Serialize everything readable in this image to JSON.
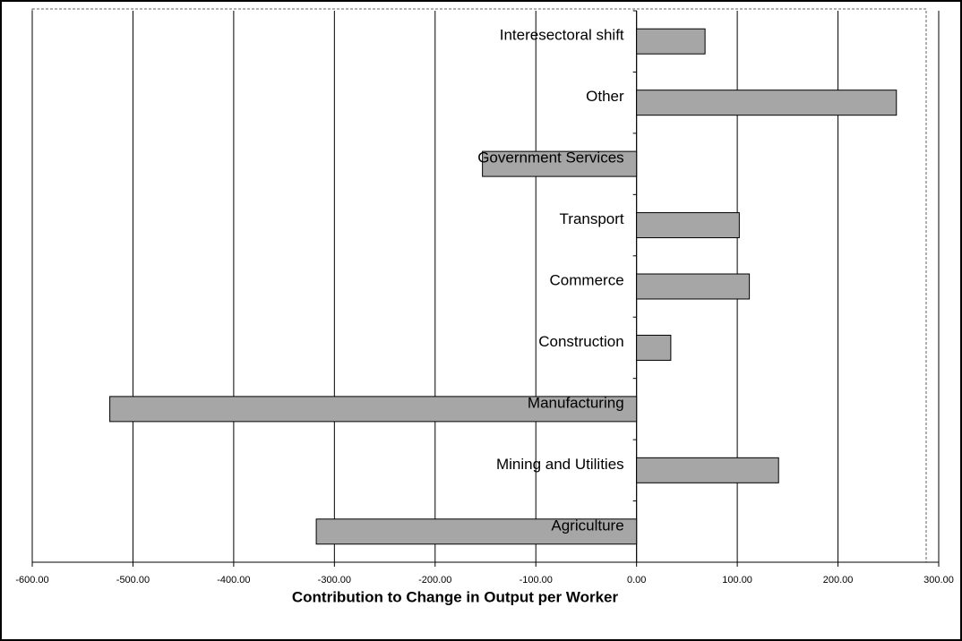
{
  "chart_data": {
    "type": "hbar",
    "x_label": "Contribution to Change in Output per Worker",
    "categories": [
      "Interesectoral shift",
      "Other",
      "Government Services",
      "Transport",
      "Commerce",
      "Construction",
      "Manufacturing",
      "Mining and Utilities",
      "Agriculture"
    ],
    "values": [
      68,
      258,
      -153,
      102,
      112,
      34,
      -523,
      141,
      -318
    ],
    "color": "#a6a6a6",
    "xlim": [
      -600,
      300
    ],
    "xticks": [
      {
        "value": -600,
        "label": "-600.00"
      },
      {
        "value": -500,
        "label": "-500.00"
      },
      {
        "value": -400,
        "label": "-400.00"
      },
      {
        "value": -300,
        "label": "-300.00"
      },
      {
        "value": -200,
        "label": "-200.00"
      },
      {
        "value": -100,
        "label": "-100.00"
      },
      {
        "value": 0,
        "label": "0.00"
      },
      {
        "value": 100,
        "label": "100.00"
      },
      {
        "value": 200,
        "label": "200.00"
      },
      {
        "value": 300,
        "label": "300.00"
      }
    ],
    "grid": true
  }
}
